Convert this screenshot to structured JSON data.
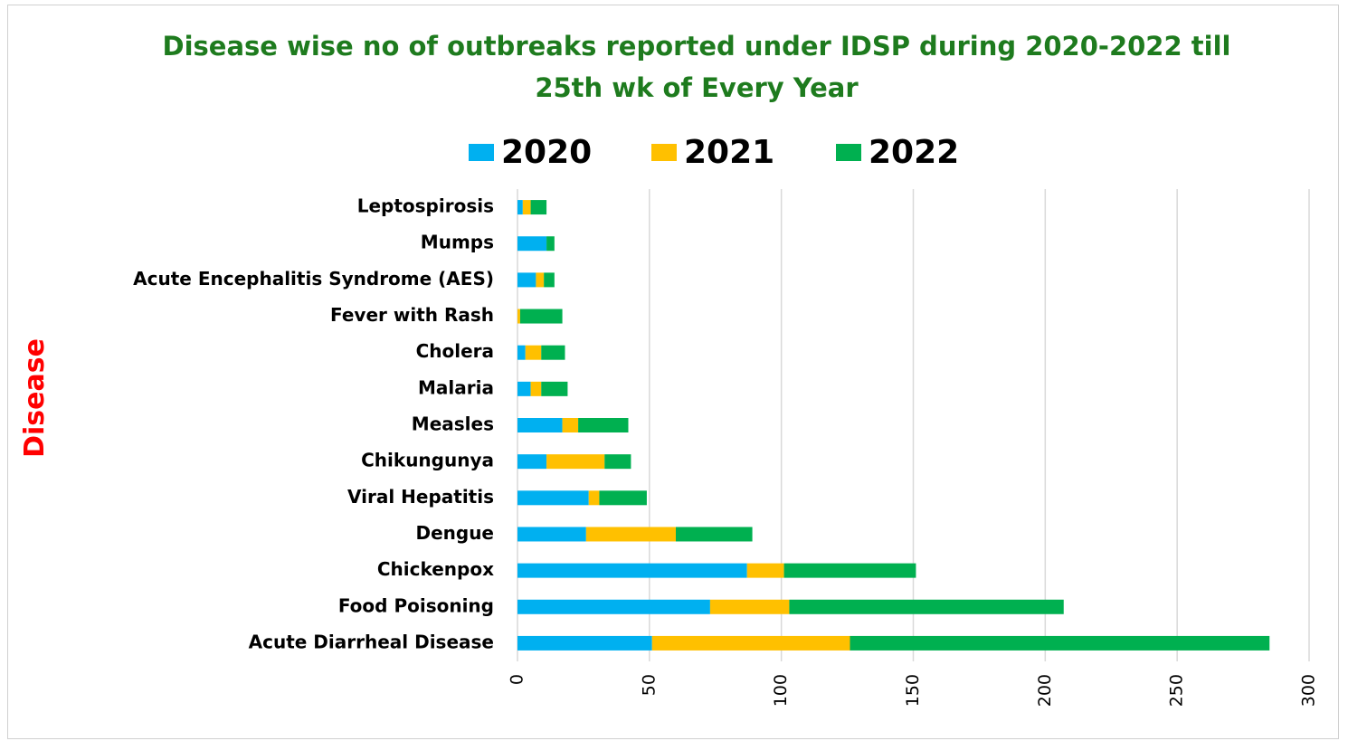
{
  "chart_data": {
    "type": "bar",
    "orientation": "horizontal",
    "stacked": true,
    "title": "Disease wise no of outbreaks reported under IDSP during  2020-2022 till 25th wk of Every Year",
    "title_lines": [
      "Disease wise no of outbreaks reported under IDSP during  2020-2022 till",
      "25th wk of Every Year"
    ],
    "ylabel": "Disease",
    "xlabel": "",
    "xlim": [
      0,
      300
    ],
    "xticks": [
      "0",
      "50",
      "100",
      "150",
      "200",
      "250",
      "300"
    ],
    "grid": true,
    "legend_position": "top",
    "categories": [
      "Acute Diarrheal Disease",
      "Food Poisoning",
      "Chickenpox",
      "Dengue",
      "Viral Hepatitis",
      "Chikungunya",
      "Measles",
      "Malaria",
      "Cholera",
      "Fever with Rash",
      "Acute Encephalitis Syndrome (AES)",
      "Mumps",
      "Leptospirosis"
    ],
    "series": [
      {
        "name": "2020",
        "color": "#00b0f0",
        "values": [
          51,
          73,
          87,
          26,
          27,
          11,
          17,
          5,
          3,
          0,
          7,
          11,
          2
        ]
      },
      {
        "name": "2021",
        "color": "#ffc000",
        "values": [
          75,
          30,
          14,
          34,
          4,
          22,
          6,
          4,
          6,
          1,
          3,
          0,
          3
        ]
      },
      {
        "name": "2022",
        "color": "#00b050",
        "values": [
          159,
          104,
          50,
          29,
          18,
          10,
          19,
          10,
          9,
          16,
          4,
          3,
          6
        ]
      }
    ]
  }
}
